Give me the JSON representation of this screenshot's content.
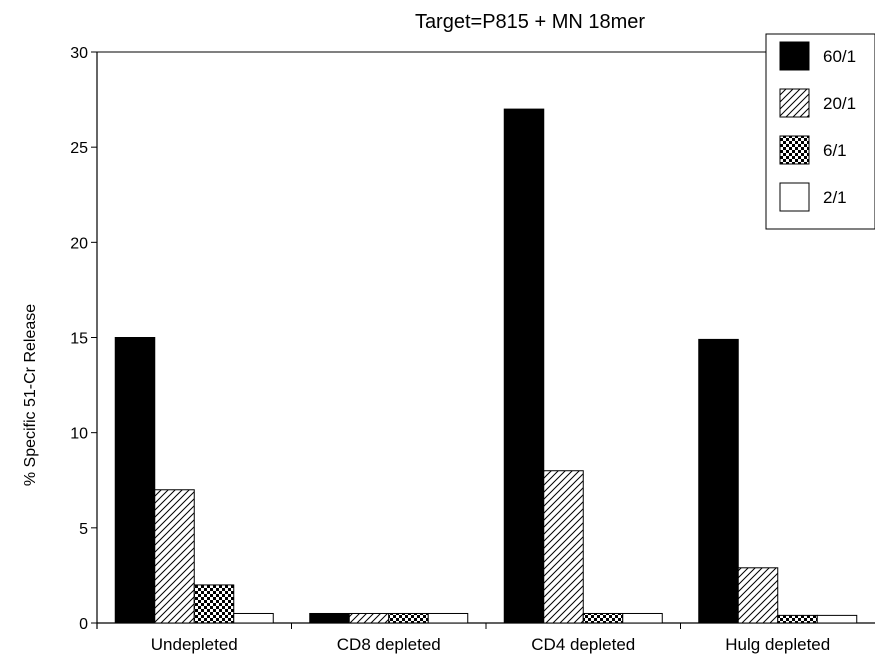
{
  "chart_data": {
    "type": "bar",
    "title": "Target=P815 + MN 18mer",
    "ylabel": "% Specific 51-Cr Release",
    "xlabel": "",
    "categories": [
      "Undepleted",
      "CD8 depleted",
      "CD4 depleted",
      "Hulg depleted"
    ],
    "series": [
      {
        "name": "60/1",
        "values": [
          15,
          0.5,
          27,
          14.9
        ],
        "pattern": "solid-black"
      },
      {
        "name": "20/1",
        "values": [
          7,
          0.5,
          8,
          2.9
        ],
        "pattern": "diagonal-hatch"
      },
      {
        "name": "6/1",
        "values": [
          2,
          0.5,
          0.5,
          0.4
        ],
        "pattern": "checkerboard"
      },
      {
        "name": "2/1",
        "values": [
          0.5,
          0.5,
          0.5,
          0.4
        ],
        "pattern": "white"
      }
    ],
    "ylim": [
      0,
      30
    ],
    "yticks": [
      "0",
      "5",
      "10",
      "15",
      "20",
      "25",
      "30"
    ],
    "legend_position": "top-right",
    "grid": false
  }
}
